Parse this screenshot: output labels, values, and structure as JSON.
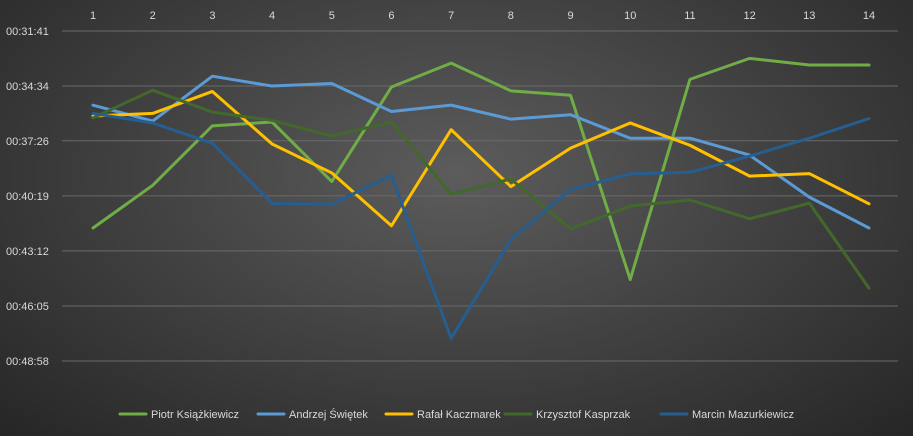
{
  "chart_data": {
    "type": "line",
    "title": "",
    "xlabel": "",
    "ylabel": "",
    "x": [
      1,
      2,
      3,
      4,
      5,
      6,
      7,
      8,
      9,
      10,
      11,
      12,
      13,
      14
    ],
    "y_ticks": [
      "00:31:41",
      "00:34:34",
      "00:37:26",
      "00:40:19",
      "00:43:12",
      "00:46:05",
      "00:48:58"
    ],
    "y_tick_seconds": [
      1901,
      2074,
      2246,
      2419,
      2592,
      2765,
      2938
    ],
    "ylim_seconds": [
      1901,
      2938
    ],
    "y_axis_reversed": true,
    "x_axis_position": "top",
    "grid": "horizontal",
    "legend_position": "bottom",
    "series": [
      {
        "name": "Piotr Książkiewicz",
        "color": "#70ad47",
        "values_seconds": [
          2520,
          2386,
          2199,
          2187,
          2374,
          2077,
          2002,
          2089,
          2103,
          2682,
          2053,
          1987,
          2008,
          2008
        ]
      },
      {
        "name": "Andrzej Świętek",
        "color": "#5b9bd5",
        "values_seconds": [
          2134,
          2184,
          2043,
          2074,
          2066,
          2154,
          2134,
          2178,
          2164,
          2238,
          2238,
          2291,
          2423,
          2520
        ]
      },
      {
        "name": "Rafał Kaczmarek",
        "color": "#ffc000",
        "values_seconds": [
          2168,
          2160,
          2091,
          2256,
          2347,
          2513,
          2211,
          2390,
          2269,
          2190,
          2260,
          2357,
          2349,
          2444
        ]
      },
      {
        "name": "Krzysztof Kasprzak",
        "color": "#43682b",
        "values_seconds": [
          2174,
          2087,
          2156,
          2182,
          2231,
          2187,
          2414,
          2366,
          2523,
          2451,
          2432,
          2491,
          2442,
          2709
        ]
      },
      {
        "name": "Marcin Mazurkiewicz",
        "color": "#255e91",
        "values_seconds": [
          2160,
          2190,
          2254,
          2443,
          2445,
          2355,
          2867,
          2557,
          2399,
          2350,
          2345,
          2294,
          2238,
          2176
        ]
      }
    ]
  }
}
